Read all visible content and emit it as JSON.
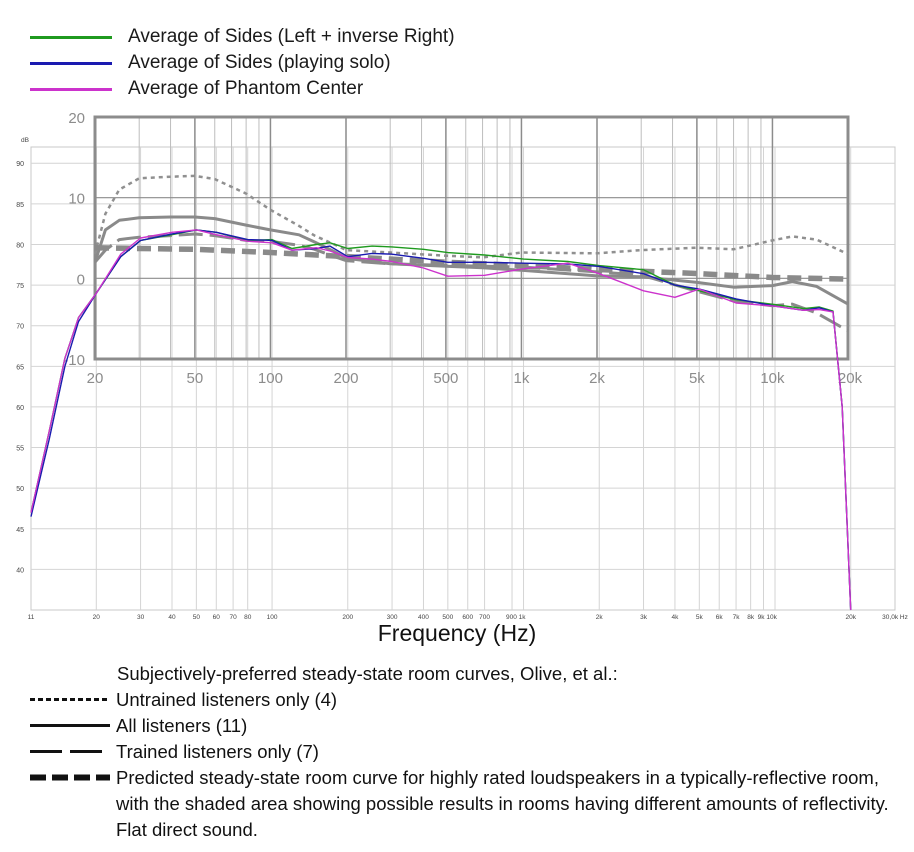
{
  "legend_top": [
    {
      "label": "Average of Sides (Left + inverse Right)",
      "color": "#1f9a1f"
    },
    {
      "label": "Average of Sides (playing solo)",
      "color": "#1a1ab0"
    },
    {
      "label": "Average of Phantom Center",
      "color": "#cc33cc"
    }
  ],
  "notes": {
    "heading": "Subjectively-preferred steady-state room curves, Olive, et al.:",
    "items": [
      {
        "label": "Untrained listeners only (4)",
        "style": "dotted"
      },
      {
        "label": "All listeners (11)",
        "style": "solid"
      },
      {
        "label": "Trained listeners only (7)",
        "style": "longdash"
      },
      {
        "label": "Predicted steady-state room curve for highly rated loudspeakers in a typically-reflective room, with the shaded area showing possible results in rooms having different amounts of reflectivity.  Flat direct sound.",
        "style": "thickdash"
      }
    ]
  },
  "chart_data": [
    {
      "type": "line",
      "xlabel": "Frequency (Hz)",
      "ylabel": "dB",
      "xscale": "log",
      "xlim": [
        11,
        30000
      ],
      "ylim": [
        35,
        92
      ],
      "y_ticks": [
        40,
        45,
        50,
        55,
        60,
        65,
        70,
        75,
        80,
        85,
        90
      ],
      "x_ticks": [
        "11",
        "20",
        "30",
        "40",
        "50",
        "60",
        "70",
        "80",
        "100",
        "200",
        "300",
        "400",
        "500",
        "600",
        "700",
        "900 1k",
        "2k",
        "3k",
        "4k",
        "5k",
        "6k",
        "7k",
        "8k",
        "9k 10k",
        "20k",
        "30,0k Hz"
      ],
      "series": [
        {
          "name": "Average of Sides (Left + inverse Right)",
          "color": "#1f9a1f",
          "x": [
            11,
            13,
            15,
            17,
            20,
            25,
            30,
            40,
            50,
            60,
            80,
            100,
            120,
            150,
            170,
            200,
            250,
            300,
            400,
            500,
            700,
            1000,
            1500,
            2000,
            3000,
            4000,
            5000,
            7000,
            10000,
            13000,
            15000,
            17000,
            18500,
            20000
          ],
          "y": [
            47,
            57,
            66,
            71,
            74,
            78.5,
            80.5,
            81.2,
            81.8,
            81.5,
            80.5,
            80.6,
            79.5,
            80,
            80.2,
            79.5,
            79.8,
            79.7,
            79.4,
            79,
            78.7,
            78.2,
            77.9,
            77.4,
            76.9,
            75,
            74.3,
            73.2,
            72.6,
            72.1,
            72.3,
            71.8,
            60,
            35
          ]
        },
        {
          "name": "Average of Sides (playing solo)",
          "color": "#1a1ab0",
          "x": [
            11,
            13,
            15,
            17,
            20,
            25,
            30,
            40,
            50,
            60,
            80,
            100,
            120,
            150,
            170,
            200,
            250,
            300,
            400,
            500,
            700,
            1000,
            1500,
            2000,
            3000,
            4000,
            5000,
            7000,
            10000,
            13000,
            15000,
            17000,
            18500,
            20000
          ],
          "y": [
            46.5,
            56,
            65,
            70.5,
            74,
            78.5,
            80.5,
            81.3,
            81.8,
            81.5,
            80.6,
            80.5,
            79.3,
            79.5,
            79.8,
            78.5,
            78.9,
            78.8,
            78.3,
            77.8,
            77.8,
            77.7,
            77.6,
            77.3,
            76.4,
            75,
            74.5,
            73.3,
            72.4,
            71.9,
            72.2,
            71.7,
            60,
            35
          ]
        },
        {
          "name": "Average of Phantom Center",
          "color": "#cc33cc",
          "x": [
            11,
            13,
            15,
            17,
            20,
            25,
            30,
            40,
            50,
            60,
            80,
            100,
            120,
            150,
            170,
            200,
            250,
            300,
            400,
            500,
            700,
            1000,
            1500,
            2000,
            3000,
            4000,
            5000,
            7000,
            10000,
            13000,
            15000,
            17000,
            18500,
            20000
          ],
          "y": [
            47,
            57,
            66,
            71,
            74,
            78.8,
            80.8,
            81.5,
            81.8,
            81.2,
            80.4,
            80.2,
            79.3,
            79.6,
            79.2,
            78.4,
            78.2,
            77.9,
            77.1,
            76.1,
            76.2,
            77,
            77.7,
            76.4,
            74.3,
            73.5,
            74.5,
            72.8,
            72.4,
            71.9,
            72,
            71.7,
            60,
            35
          ]
        }
      ]
    },
    {
      "type": "line",
      "xlabel": "",
      "xscale": "log",
      "xlim": [
        20,
        20000
      ],
      "ylim": [
        -10,
        20
      ],
      "y_ticks": [
        -10,
        0,
        10,
        20
      ],
      "x_ticks": [
        "20",
        "50",
        "100",
        "200",
        "500",
        "1k",
        "2k",
        "5k",
        "10k",
        "20k"
      ],
      "series": [
        {
          "name": "Untrained listeners only (4)",
          "color": "#909090",
          "style": "dotted",
          "x": [
            20,
            22,
            25,
            30,
            40,
            50,
            60,
            80,
            100,
            130,
            150,
            180,
            200,
            300,
            500,
            700,
            1000,
            2000,
            3000,
            5000,
            7000,
            10000,
            12000,
            15000,
            20000
          ],
          "y": [
            3,
            8,
            11,
            12.4,
            12.6,
            12.7,
            12.3,
            10.5,
            8.5,
            6.5,
            5.3,
            4.2,
            3.5,
            3.2,
            2.8,
            2.6,
            3.2,
            3.1,
            3.5,
            3.8,
            3.6,
            4.7,
            5.2,
            4.8,
            3.0
          ]
        },
        {
          "name": "All listeners (11)",
          "color": "#8a8a8a",
          "style": "solid",
          "x": [
            20,
            22,
            25,
            30,
            40,
            50,
            60,
            80,
            100,
            130,
            150,
            180,
            200,
            300,
            500,
            700,
            1000,
            2000,
            3000,
            5000,
            7000,
            10000,
            12000,
            15000,
            20000
          ],
          "y": [
            2,
            6,
            7.2,
            7.5,
            7.6,
            7.6,
            7.4,
            6.6,
            6,
            5.4,
            4.5,
            3.3,
            2.5,
            1.8,
            1.5,
            1.3,
            1.0,
            0.3,
            0.2,
            -0.5,
            -1.1,
            -0.9,
            -0.4,
            -1.0,
            -3.2
          ]
        },
        {
          "name": "Trained listeners only (7)",
          "color": "#8a8a8a",
          "style": "longdash",
          "x": [
            20,
            22,
            25,
            30,
            40,
            50,
            60,
            80,
            100,
            130,
            150,
            180,
            200,
            300,
            500,
            700,
            1000,
            2000,
            3000,
            5000,
            7000,
            10000,
            12000,
            15000,
            20000
          ],
          "y": [
            2,
            3.5,
            4.8,
            5.1,
            5.3,
            5.5,
            5.3,
            4.7,
            4.6,
            4.1,
            3.6,
            2.7,
            2.2,
            1.8,
            1.6,
            1.5,
            1.4,
            0.8,
            0.4,
            -1.6,
            -2.8,
            -3.4,
            -3.2,
            -4.3,
            -6.5
          ]
        },
        {
          "name": "Predicted steady-state room curve",
          "color": "#8a8a8a",
          "style": "thickdash",
          "x": [
            20,
            30,
            50,
            100,
            200,
            500,
            1000,
            2000,
            5000,
            10000,
            20000
          ],
          "y": [
            3.8,
            3.7,
            3.6,
            3.2,
            2.7,
            2.0,
            1.6,
            1.1,
            0.6,
            0.1,
            -0.1
          ]
        }
      ]
    }
  ]
}
